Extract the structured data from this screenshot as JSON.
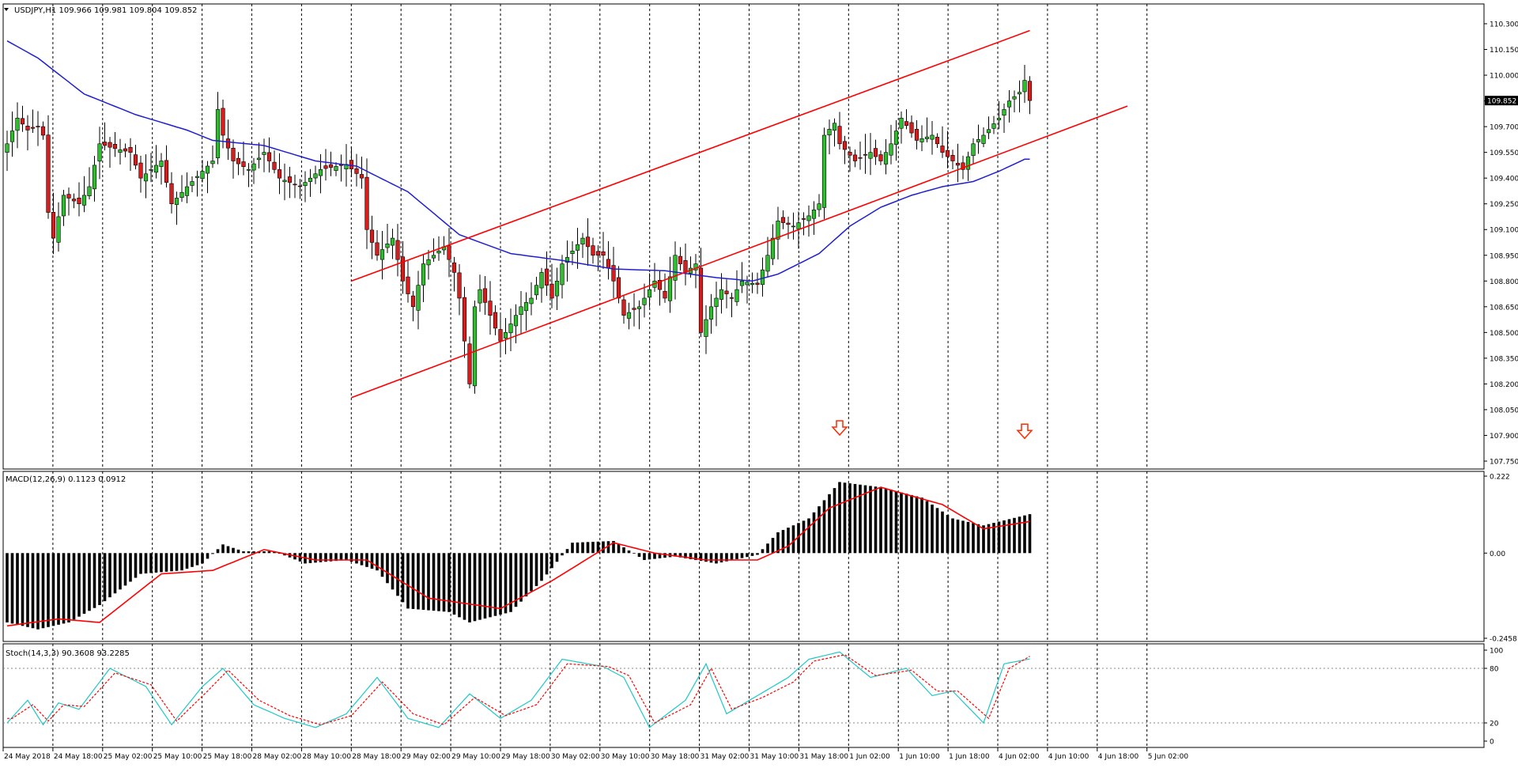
{
  "window": {
    "header_main": "USDJPY,H1  109.966 109.981 109.804 109.852",
    "header_macd": "MACD(12,26,9) 0.1123 0.0912",
    "header_stoch": "Stoch(14,3,3) 90.3608 93.2285",
    "current_price": "109.852"
  },
  "colors": {
    "bull": "#2dbd2d",
    "bear": "#d81b1b",
    "ma": "#1f1fd0",
    "channel": "#ff0000",
    "macd_hist": "#000000",
    "macd_signal": "#ff0000",
    "stoch_main": "#1ec8c8",
    "stoch_signal": "#ff0000",
    "grid": "#000000",
    "arrow": "#ff2a00"
  },
  "chart_data": [
    {
      "type": "candlestick",
      "symbol": "USDJPY",
      "timeframe": "H1",
      "ylim": [
        107.75,
        110.3
      ],
      "y_ticks": [
        "110.300",
        "110.150",
        "110.000",
        "109.850",
        "109.700",
        "109.550",
        "109.400",
        "109.250",
        "109.100",
        "108.950",
        "108.800",
        "108.650",
        "108.500",
        "108.350",
        "108.200",
        "108.050",
        "107.900",
        "107.750"
      ],
      "x_ticks": [
        "24 May 2018",
        "24 May 18:00",
        "25 May 02:00",
        "25 May 10:00",
        "25 May 18:00",
        "28 May 02:00",
        "28 May 10:00",
        "28 May 18:00",
        "29 May 02:00",
        "29 May 10:00",
        "29 May 18:00",
        "30 May 02:00",
        "30 May 10:00",
        "30 May 18:00",
        "31 May 02:00",
        "31 May 10:00",
        "31 May 18:00",
        "1 Jun 02:00",
        "1 Jun 10:00",
        "1 Jun 18:00",
        "4 Jun 02:00",
        "4 Jun 10:00",
        "4 Jun 18:00",
        "5 Jun 02:00"
      ],
      "channel_upper": [
        {
          "bar": 67,
          "price": 108.8
        },
        {
          "bar": 199,
          "price": 110.26
        }
      ],
      "channel_lower": [
        {
          "bar": 67,
          "price": 108.12
        },
        {
          "bar": 218,
          "price": 109.82
        }
      ],
      "down_arrows": [
        {
          "bar": 162,
          "price": 107.93
        },
        {
          "bar": 198,
          "price": 107.91
        }
      ],
      "ma_anchors": [
        {
          "bar": 0,
          "price": 110.2
        },
        {
          "bar": 6,
          "price": 110.1
        },
        {
          "bar": 15,
          "price": 109.89
        },
        {
          "bar": 25,
          "price": 109.77
        },
        {
          "bar": 35,
          "price": 109.68
        },
        {
          "bar": 40,
          "price": 109.62
        },
        {
          "bar": 50,
          "price": 109.59
        },
        {
          "bar": 60,
          "price": 109.5
        },
        {
          "bar": 68,
          "price": 109.47
        },
        {
          "bar": 78,
          "price": 109.32
        },
        {
          "bar": 88,
          "price": 109.07
        },
        {
          "bar": 98,
          "price": 108.96
        },
        {
          "bar": 108,
          "price": 108.92
        },
        {
          "bar": 118,
          "price": 108.87
        },
        {
          "bar": 128,
          "price": 108.86
        },
        {
          "bar": 138,
          "price": 108.82
        },
        {
          "bar": 145,
          "price": 108.8
        },
        {
          "bar": 150,
          "price": 108.84
        },
        {
          "bar": 158,
          "price": 108.96
        },
        {
          "bar": 164,
          "price": 109.12
        },
        {
          "bar": 170,
          "price": 109.23
        },
        {
          "bar": 176,
          "price": 109.3
        },
        {
          "bar": 182,
          "price": 109.35
        },
        {
          "bar": 188,
          "price": 109.38
        },
        {
          "bar": 193,
          "price": 109.44
        },
        {
          "bar": 198,
          "price": 109.51
        }
      ],
      "close_anchors": [
        {
          "bar": 0,
          "price": 109.6
        },
        {
          "bar": 2,
          "price": 109.75
        },
        {
          "bar": 4,
          "price": 109.68
        },
        {
          "bar": 6,
          "price": 109.7
        },
        {
          "bar": 7,
          "price": 109.65
        },
        {
          "bar": 8,
          "price": 109.2
        },
        {
          "bar": 9,
          "price": 109.05
        },
        {
          "bar": 11,
          "price": 109.3
        },
        {
          "bar": 14,
          "price": 109.25
        },
        {
          "bar": 16,
          "price": 109.35
        },
        {
          "bar": 18,
          "price": 109.6
        },
        {
          "bar": 20,
          "price": 109.58
        },
        {
          "bar": 24,
          "price": 109.55
        },
        {
          "bar": 26,
          "price": 109.4
        },
        {
          "bar": 30,
          "price": 109.5
        },
        {
          "bar": 32,
          "price": 109.25
        },
        {
          "bar": 35,
          "price": 109.35
        },
        {
          "bar": 40,
          "price": 109.5
        },
        {
          "bar": 41,
          "price": 109.8
        },
        {
          "bar": 42,
          "price": 109.65
        },
        {
          "bar": 44,
          "price": 109.5
        },
        {
          "bar": 47,
          "price": 109.45
        },
        {
          "bar": 50,
          "price": 109.55
        },
        {
          "bar": 53,
          "price": 109.4
        },
        {
          "bar": 57,
          "price": 109.35
        },
        {
          "bar": 61,
          "price": 109.45
        },
        {
          "bar": 66,
          "price": 109.48
        },
        {
          "bar": 69,
          "price": 109.4
        },
        {
          "bar": 70,
          "price": 109.1
        },
        {
          "bar": 72,
          "price": 108.95
        },
        {
          "bar": 75,
          "price": 109.05
        },
        {
          "bar": 77,
          "price": 108.8
        },
        {
          "bar": 79,
          "price": 108.65
        },
        {
          "bar": 81,
          "price": 108.9
        },
        {
          "bar": 83,
          "price": 108.95
        },
        {
          "bar": 85,
          "price": 109.0
        },
        {
          "bar": 87,
          "price": 108.85
        },
        {
          "bar": 88,
          "price": 108.7
        },
        {
          "bar": 90,
          "price": 108.2
        },
        {
          "bar": 91,
          "price": 108.65
        },
        {
          "bar": 92,
          "price": 108.75
        },
        {
          "bar": 94,
          "price": 108.6
        },
        {
          "bar": 96,
          "price": 108.45
        },
        {
          "bar": 98,
          "price": 108.55
        },
        {
          "bar": 100,
          "price": 108.65
        },
        {
          "bar": 102,
          "price": 108.7
        },
        {
          "bar": 104,
          "price": 108.85
        },
        {
          "bar": 106,
          "price": 108.7
        },
        {
          "bar": 108,
          "price": 108.9
        },
        {
          "bar": 112,
          "price": 109.05
        },
        {
          "bar": 114,
          "price": 108.95
        },
        {
          "bar": 116,
          "price": 108.95
        },
        {
          "bar": 118,
          "price": 108.8
        },
        {
          "bar": 120,
          "price": 108.6
        },
        {
          "bar": 123,
          "price": 108.65
        },
        {
          "bar": 126,
          "price": 108.8
        },
        {
          "bar": 128,
          "price": 108.7
        },
        {
          "bar": 130,
          "price": 108.95
        },
        {
          "bar": 132,
          "price": 108.85
        },
        {
          "bar": 134,
          "price": 108.9
        },
        {
          "bar": 135,
          "price": 108.5
        },
        {
          "bar": 137,
          "price": 108.65
        },
        {
          "bar": 139,
          "price": 108.75
        },
        {
          "bar": 141,
          "price": 108.7
        },
        {
          "bar": 143,
          "price": 108.8
        },
        {
          "bar": 146,
          "price": 108.78
        },
        {
          "bar": 148,
          "price": 108.95
        },
        {
          "bar": 150,
          "price": 109.15
        },
        {
          "bar": 153,
          "price": 109.12
        },
        {
          "bar": 156,
          "price": 109.18
        },
        {
          "bar": 158,
          "price": 109.25
        },
        {
          "bar": 159,
          "price": 109.65
        },
        {
          "bar": 161,
          "price": 109.72
        },
        {
          "bar": 162,
          "price": 109.6
        },
        {
          "bar": 165,
          "price": 109.5
        },
        {
          "bar": 168,
          "price": 109.55
        },
        {
          "bar": 170,
          "price": 109.5
        },
        {
          "bar": 172,
          "price": 109.6
        },
        {
          "bar": 174,
          "price": 109.75
        },
        {
          "bar": 177,
          "price": 109.62
        },
        {
          "bar": 180,
          "price": 109.65
        },
        {
          "bar": 182,
          "price": 109.55
        },
        {
          "bar": 184,
          "price": 109.5
        },
        {
          "bar": 186,
          "price": 109.45
        },
        {
          "bar": 188,
          "price": 109.6
        },
        {
          "bar": 190,
          "price": 109.65
        },
        {
          "bar": 193,
          "price": 109.75
        },
        {
          "bar": 195,
          "price": 109.85
        },
        {
          "bar": 197,
          "price": 109.9
        },
        {
          "bar": 198,
          "price": 109.97
        },
        {
          "bar": 199,
          "price": 109.852
        }
      ]
    },
    {
      "type": "bar",
      "name": "MACD(12,26,9)",
      "ylim": [
        -0.2458,
        0.222
      ],
      "y_ticks": [
        "0.222",
        "0.00",
        "-0.2458"
      ],
      "hist_anchors": [
        {
          "bar": 0,
          "value": -0.2
        },
        {
          "bar": 6,
          "value": -0.22
        },
        {
          "bar": 12,
          "value": -0.2
        },
        {
          "bar": 18,
          "value": -0.15
        },
        {
          "bar": 26,
          "value": -0.06
        },
        {
          "bar": 34,
          "value": -0.05
        },
        {
          "bar": 38,
          "value": -0.03
        },
        {
          "bar": 42,
          "value": 0.025
        },
        {
          "bar": 46,
          "value": 0.005
        },
        {
          "bar": 52,
          "value": 0.005
        },
        {
          "bar": 58,
          "value": -0.03
        },
        {
          "bar": 66,
          "value": -0.02
        },
        {
          "bar": 72,
          "value": -0.05
        },
        {
          "bar": 78,
          "value": -0.16
        },
        {
          "bar": 86,
          "value": -0.17
        },
        {
          "bar": 90,
          "value": -0.2
        },
        {
          "bar": 98,
          "value": -0.17
        },
        {
          "bar": 104,
          "value": -0.08
        },
        {
          "bar": 110,
          "value": 0.03
        },
        {
          "bar": 118,
          "value": 0.035
        },
        {
          "bar": 124,
          "value": -0.02
        },
        {
          "bar": 130,
          "value": -0.01
        },
        {
          "bar": 138,
          "value": -0.03
        },
        {
          "bar": 146,
          "value": -0.005
        },
        {
          "bar": 150,
          "value": 0.06
        },
        {
          "bar": 156,
          "value": 0.1
        },
        {
          "bar": 162,
          "value": 0.205
        },
        {
          "bar": 170,
          "value": 0.19
        },
        {
          "bar": 178,
          "value": 0.16
        },
        {
          "bar": 184,
          "value": 0.1
        },
        {
          "bar": 190,
          "value": 0.08
        },
        {
          "bar": 199,
          "value": 0.1123
        }
      ],
      "signal_anchors": [
        {
          "bar": 0,
          "value": -0.21
        },
        {
          "bar": 10,
          "value": -0.19
        },
        {
          "bar": 18,
          "value": -0.2
        },
        {
          "bar": 30,
          "value": -0.06
        },
        {
          "bar": 40,
          "value": -0.05
        },
        {
          "bar": 50,
          "value": 0.01
        },
        {
          "bar": 60,
          "value": -0.02
        },
        {
          "bar": 70,
          "value": -0.02
        },
        {
          "bar": 82,
          "value": -0.13
        },
        {
          "bar": 96,
          "value": -0.16
        },
        {
          "bar": 106,
          "value": -0.08
        },
        {
          "bar": 118,
          "value": 0.03
        },
        {
          "bar": 126,
          "value": 0.0
        },
        {
          "bar": 136,
          "value": -0.02
        },
        {
          "bar": 146,
          "value": -0.02
        },
        {
          "bar": 152,
          "value": 0.02
        },
        {
          "bar": 160,
          "value": 0.13
        },
        {
          "bar": 170,
          "value": 0.19
        },
        {
          "bar": 182,
          "value": 0.14
        },
        {
          "bar": 190,
          "value": 0.07
        },
        {
          "bar": 199,
          "value": 0.0912
        }
      ]
    },
    {
      "type": "line",
      "name": "Stoch(14,3,3)",
      "ylim": [
        0,
        100
      ],
      "y_ticks": [
        "100",
        "80",
        "20",
        "0"
      ],
      "levels": [
        80,
        20
      ],
      "main_anchors": [
        {
          "bar": 0,
          "value": 20
        },
        {
          "bar": 4,
          "value": 45
        },
        {
          "bar": 7,
          "value": 18
        },
        {
          "bar": 10,
          "value": 42
        },
        {
          "bar": 14,
          "value": 35
        },
        {
          "bar": 20,
          "value": 80
        },
        {
          "bar": 27,
          "value": 60
        },
        {
          "bar": 32,
          "value": 18
        },
        {
          "bar": 38,
          "value": 60
        },
        {
          "bar": 42,
          "value": 80
        },
        {
          "bar": 48,
          "value": 40
        },
        {
          "bar": 54,
          "value": 25
        },
        {
          "bar": 60,
          "value": 15
        },
        {
          "bar": 66,
          "value": 30
        },
        {
          "bar": 72,
          "value": 70
        },
        {
          "bar": 78,
          "value": 25
        },
        {
          "bar": 84,
          "value": 15
        },
        {
          "bar": 90,
          "value": 52
        },
        {
          "bar": 96,
          "value": 25
        },
        {
          "bar": 102,
          "value": 45
        },
        {
          "bar": 108,
          "value": 90
        },
        {
          "bar": 116,
          "value": 82
        },
        {
          "bar": 120,
          "value": 70
        },
        {
          "bar": 125,
          "value": 15
        },
        {
          "bar": 132,
          "value": 45
        },
        {
          "bar": 136,
          "value": 85
        },
        {
          "bar": 140,
          "value": 30
        },
        {
          "bar": 146,
          "value": 50
        },
        {
          "bar": 152,
          "value": 70
        },
        {
          "bar": 156,
          "value": 90
        },
        {
          "bar": 162,
          "value": 98
        },
        {
          "bar": 168,
          "value": 70
        },
        {
          "bar": 175,
          "value": 80
        },
        {
          "bar": 180,
          "value": 50
        },
        {
          "bar": 184,
          "value": 55
        },
        {
          "bar": 190,
          "value": 20
        },
        {
          "bar": 194,
          "value": 85
        },
        {
          "bar": 199,
          "value": 90.3608
        }
      ],
      "signal_anchors": [
        {
          "bar": 1,
          "value": 25
        },
        {
          "bar": 5,
          "value": 40
        },
        {
          "bar": 8,
          "value": 22
        },
        {
          "bar": 11,
          "value": 40
        },
        {
          "bar": 15,
          "value": 38
        },
        {
          "bar": 21,
          "value": 75
        },
        {
          "bar": 28,
          "value": 62
        },
        {
          "bar": 33,
          "value": 22
        },
        {
          "bar": 39,
          "value": 55
        },
        {
          "bar": 43,
          "value": 78
        },
        {
          "bar": 49,
          "value": 45
        },
        {
          "bar": 55,
          "value": 28
        },
        {
          "bar": 61,
          "value": 18
        },
        {
          "bar": 67,
          "value": 28
        },
        {
          "bar": 73,
          "value": 65
        },
        {
          "bar": 79,
          "value": 30
        },
        {
          "bar": 85,
          "value": 18
        },
        {
          "bar": 91,
          "value": 48
        },
        {
          "bar": 97,
          "value": 28
        },
        {
          "bar": 103,
          "value": 40
        },
        {
          "bar": 109,
          "value": 85
        },
        {
          "bar": 117,
          "value": 82
        },
        {
          "bar": 121,
          "value": 72
        },
        {
          "bar": 126,
          "value": 20
        },
        {
          "bar": 133,
          "value": 40
        },
        {
          "bar": 137,
          "value": 80
        },
        {
          "bar": 141,
          "value": 35
        },
        {
          "bar": 147,
          "value": 48
        },
        {
          "bar": 153,
          "value": 65
        },
        {
          "bar": 157,
          "value": 88
        },
        {
          "bar": 163,
          "value": 95
        },
        {
          "bar": 169,
          "value": 72
        },
        {
          "bar": 176,
          "value": 78
        },
        {
          "bar": 181,
          "value": 55
        },
        {
          "bar": 185,
          "value": 55
        },
        {
          "bar": 191,
          "value": 25
        },
        {
          "bar": 195,
          "value": 80
        },
        {
          "bar": 199,
          "value": 93.2285
        }
      ]
    }
  ]
}
